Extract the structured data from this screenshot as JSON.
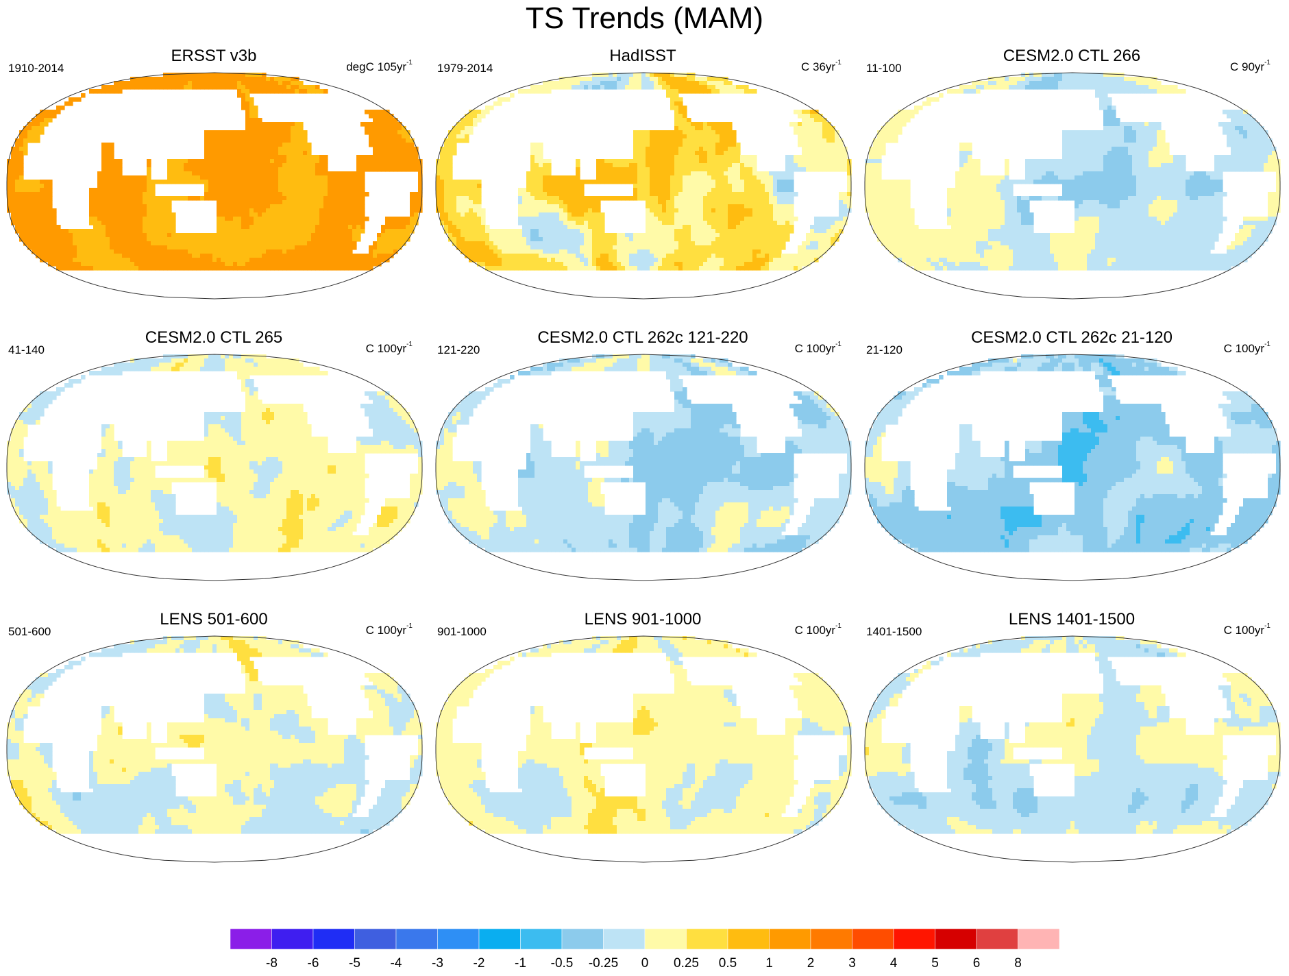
{
  "title": "TS Trends (MAM)",
  "panels": [
    {
      "title": "ERSST v3b",
      "left": "1910-2014",
      "units": "degC 105yr",
      "sup": "-1",
      "base": 1.1,
      "pattern": 0,
      "amp": 0.35
    },
    {
      "title": "HadISST",
      "left": "1979-2014",
      "units": "C 36yr",
      "sup": "-1",
      "base": 0.3,
      "pattern": 1,
      "amp": 0.8
    },
    {
      "title": "CESM2.0 CTL 266",
      "left": "11-100",
      "units": "C 90yr",
      "sup": "-1",
      "base": -0.05,
      "pattern": 2,
      "amp": 0.45
    },
    {
      "title": "CESM2.0 CTL 265",
      "left": "41-140",
      "units": "C 100yr",
      "sup": "-1",
      "base": 0.05,
      "pattern": 3,
      "amp": 0.4
    },
    {
      "title": "CESM2.0 CTL 262c 121-220",
      "left": "121-220",
      "units": "C 100yr",
      "sup": "-1",
      "base": -0.12,
      "pattern": 4,
      "amp": 0.45
    },
    {
      "title": "CESM2.0 CTL 262c 21-120",
      "left": "21-120",
      "units": "C 100yr",
      "sup": "-1",
      "base": -0.28,
      "pattern": 5,
      "amp": 0.55
    },
    {
      "title": "LENS 501-600",
      "left": "501-600",
      "units": "C 100yr",
      "sup": "-1",
      "base": 0.0,
      "pattern": 6,
      "amp": 0.5
    },
    {
      "title": "LENS 901-1000",
      "left": "901-1000",
      "units": "C 100yr",
      "sup": "-1",
      "base": 0.1,
      "pattern": 7,
      "amp": 0.4
    },
    {
      "title": "LENS 1401-1500",
      "left": "1401-1500",
      "units": "C 100yr",
      "sup": "-1",
      "base": -0.05,
      "pattern": 8,
      "amp": 0.4
    }
  ],
  "chart_data": {
    "type": "heatmap",
    "title": "TS Trends (MAM)",
    "colorbar": {
      "labels": [
        "-8",
        "-6",
        "-5",
        "-4",
        "-3",
        "-2",
        "-1",
        "-0.5",
        "-0.25",
        "0",
        "0.25",
        "0.5",
        "1",
        "2",
        "3",
        "4",
        "5",
        "6",
        "8"
      ],
      "levels": [
        -8,
        -6,
        -5,
        -4,
        -3,
        -2,
        -1,
        -0.5,
        -0.25,
        0,
        0.25,
        0.5,
        1,
        2,
        3,
        4,
        5,
        6,
        8
      ],
      "colors": [
        "#8b1ee8",
        "#3f1ef0",
        "#1f2df5",
        "#3f5fe0",
        "#3a78ec",
        "#2e8ff5",
        "#0aaef0",
        "#3cbcf0",
        "#8ccbec",
        "#bde3f5",
        "#fffaa8",
        "#ffdf40",
        "#ffbc10",
        "#ff9a00",
        "#ff7a00",
        "#ff4d00",
        "#ff1500",
        "#d60000",
        "#e04040",
        "#ffb4b4"
      ]
    },
    "panels": [
      "ERSST v3b",
      "HadISST",
      "CESM2.0 CTL 266",
      "CESM2.0 CTL 265",
      "CESM2.0 CTL 262c 121-220",
      "CESM2.0 CTL 262c 21-120",
      "LENS 501-600",
      "LENS 901-1000",
      "LENS 1401-1500"
    ],
    "panel_periods": [
      "1910-2014",
      "1979-2014",
      "11-100",
      "41-140",
      "121-220",
      "21-120",
      "501-600",
      "901-1000",
      "1401-1500"
    ],
    "panel_units": [
      "degC 105yr-1",
      "C 36yr-1",
      "C 90yr-1",
      "C 100yr-1",
      "C 100yr-1",
      "C 100yr-1",
      "C 100yr-1",
      "C 100yr-1",
      "C 100yr-1"
    ],
    "projection": "Robinson-like global, Pacific-centered",
    "field": "Surface temperature trend, MAM"
  }
}
